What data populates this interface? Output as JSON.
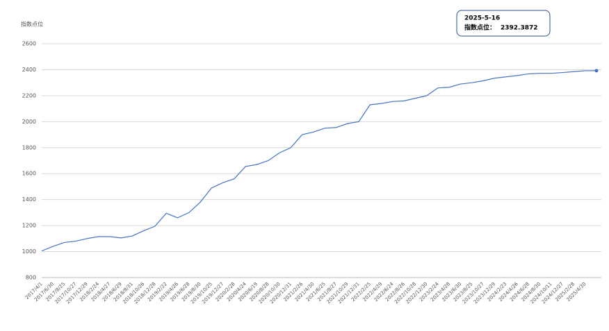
{
  "chart_data": {
    "type": "line",
    "ylabel": "指数点位",
    "tooltip": {
      "title": "2025-5-16",
      "label": "指数点位："
    },
    "categories": [
      "2017/4/1",
      "2017/6/30",
      "2017/8/25",
      "2017/10/27",
      "2017/12/29",
      "2018/2/24",
      "2018/4/27",
      "2018/6/29",
      "2018/8/31",
      "2018/10/26",
      "2018/12/28",
      "2019/2/22",
      "2019/4/26",
      "2019/6/28",
      "2019/8/30",
      "2019/10/25",
      "2019/12/27",
      "2020/2/28",
      "2020/4/24",
      "2020/6/19",
      "2020/8/28",
      "2020/10/30",
      "2020/12/31",
      "2021/2/26",
      "2021/4/30",
      "2021/6/25",
      "2021/8/27",
      "2021/10/29",
      "2021/12/31",
      "2022/2/25",
      "2022/4/29",
      "2022/6/24",
      "2022/8/26",
      "2022/10/28",
      "2022/12/30",
      "2023/2/24",
      "2023/4/28",
      "2023/6/30",
      "2023/8/25",
      "2023/10/27",
      "2023/12/29",
      "2024/2/23",
      "2024/4/26",
      "2024/6/28",
      "2024/8/30",
      "2024/10/11",
      "2024/12/27",
      "2025/2/28",
      "2025/4/30",
      null
    ],
    "series": [
      {
        "name": "指数点位",
        "color": "#4472c4",
        "values": [
          1005,
          1040,
          1070,
          1080,
          1100,
          1115,
          1115,
          1105,
          1120,
          1160,
          1195,
          1295,
          1260,
          1300,
          1380,
          1490,
          1530,
          1560,
          1655,
          1670,
          1700,
          1760,
          1800,
          1900,
          1920,
          1950,
          1955,
          1985,
          2000,
          2130,
          2140,
          2155,
          2160,
          2180,
          2200,
          2260,
          2265,
          2290,
          2300,
          2315,
          2335,
          2345,
          2355,
          2368,
          2372,
          2372,
          2378,
          2385,
          2392,
          2392.3872
        ]
      }
    ],
    "ylim": [
      800,
      2600
    ],
    "yticks": [
      800,
      1000,
      1200,
      1400,
      1600,
      1800,
      2000,
      2200,
      2400,
      2600
    ],
    "grid": true
  }
}
